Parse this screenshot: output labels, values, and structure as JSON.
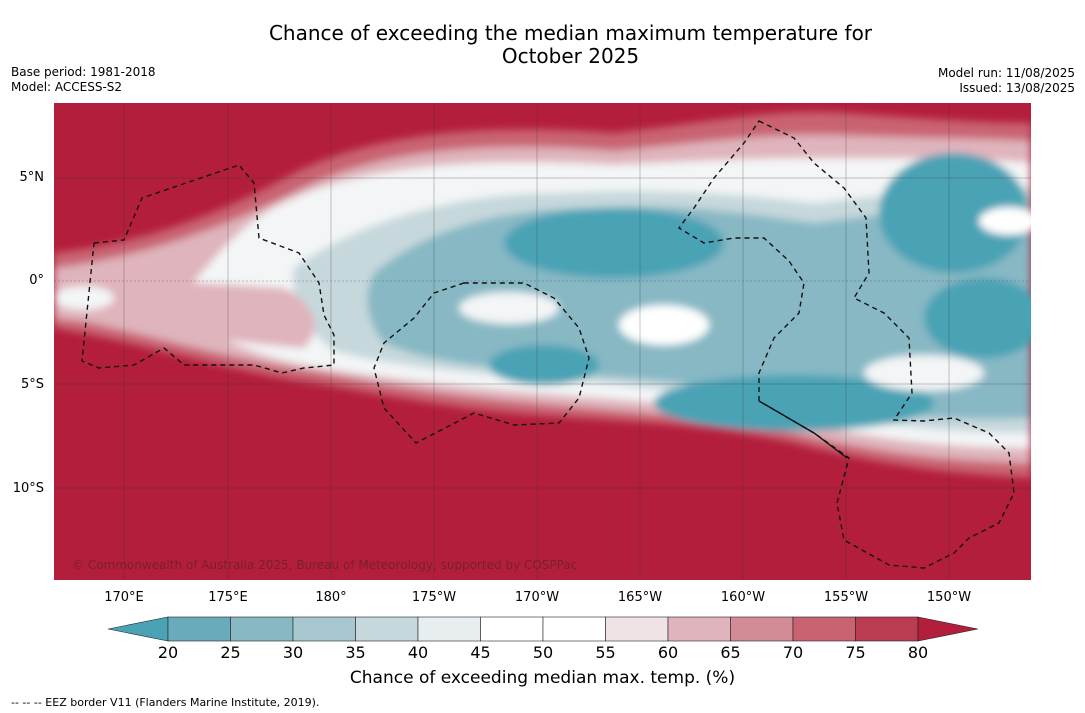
{
  "header": {
    "title_line1": "Chance of exceeding the median maximum temperature for",
    "title_line2": "October 2025",
    "base_period": "Base period: 1981-2018",
    "model": "Model: ACCESS-S2",
    "model_run": "Model run: 11/08/2025",
    "issued": "Issued: 13/08/2025"
  },
  "map": {
    "copyright": "© Commonwealth of Australia 2025, Bureau of Meteorology, supported by COSPPac",
    "longitude_labels": [
      "170°E",
      "175°E",
      "180°",
      "175°W",
      "170°W",
      "165°W",
      "160°W",
      "155°W",
      "150°W"
    ],
    "latitude_labels": [
      "5°N",
      "0°",
      "5°S",
      "10°S"
    ]
  },
  "colorbar": {
    "title": "Chance of exceeding median max. temp. (%)",
    "ticks": [
      "20",
      "25",
      "30",
      "35",
      "40",
      "45",
      "50",
      "55",
      "60",
      "65",
      "70",
      "75",
      "80"
    ],
    "colors": [
      "#6aabbb",
      "#87b8c4",
      "#a7c8cf",
      "#c6d8dc",
      "#e8eef0",
      "#ffffff",
      "#ffffff",
      "#efe3e6",
      "#dfb4bc",
      "#d38b96",
      "#c96372",
      "#b93c50"
    ],
    "low_color": "#4aa3b5",
    "high_color": "#b31e3c"
  },
  "footer": {
    "legend_note": "--  --  -- EEZ border V11 (Flanders Marine Institute, 2019)."
  }
}
